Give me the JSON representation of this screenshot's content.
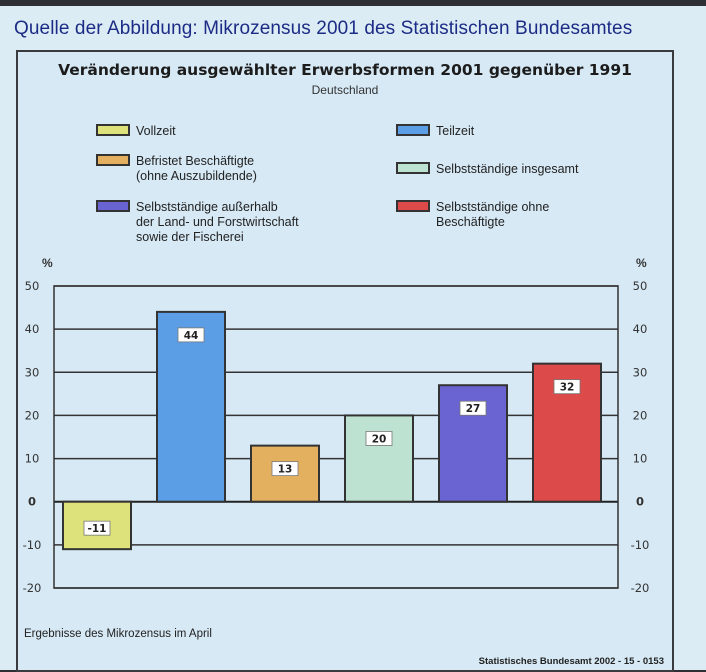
{
  "source_caption": "Quelle der Abbildung: Mikrozensus 2001 des Statistischen Bundesamtes",
  "chart_data": {
    "type": "bar",
    "title": "Veränderung ausgewählter Erwerbsformen 2001 gegenüber 1991",
    "subtitle": "Deutschland",
    "ylabel": "%",
    "ylabel_right": "%",
    "ylim": [
      -20,
      50
    ],
    "yticks": [
      -20,
      -10,
      0,
      10,
      20,
      30,
      40,
      50
    ],
    "grid": true,
    "legend_position": "top",
    "categories": [
      "Vollzeit",
      "Teilzeit",
      "Befristet Beschäftigte (ohne Auszubildende)",
      "Selbstständige insgesamt",
      "Selbstständige außerhalb der Land- und Forstwirtschaft sowie der Fischerei",
      "Selbstständige ohne Beschäftigte"
    ],
    "values": [
      -11,
      44,
      13,
      20,
      27,
      32
    ],
    "value_labels": [
      "-11",
      "44",
      "13",
      "20",
      "27",
      "32"
    ],
    "colors": [
      "#dde27a",
      "#5b9ee6",
      "#e3b060",
      "#bde2d2",
      "#6a64d2",
      "#dc4a4a"
    ]
  },
  "legend": [
    {
      "label": "Vollzeit",
      "color": "#dde27a"
    },
    {
      "label": "Teilzeit",
      "color": "#5b9ee6"
    },
    {
      "label": "Befristet Beschäftigte\n(ohne Auszubildende)",
      "color": "#e3b060"
    },
    {
      "label": "Selbstständige insgesamt",
      "color": "#bde2d2"
    },
    {
      "label": "Selbstständige außerhalb\nder Land- und Forstwirtschaft\nsowie der Fischerei",
      "color": "#6a64d2"
    },
    {
      "label": "Selbstständige ohne\nBeschäftigte",
      "color": "#dc4a4a"
    }
  ],
  "footnote": "Ergebnisse des Mikrozensus im April",
  "credit": "Statistisches Bundesamt 2002 - 15 - 0153"
}
